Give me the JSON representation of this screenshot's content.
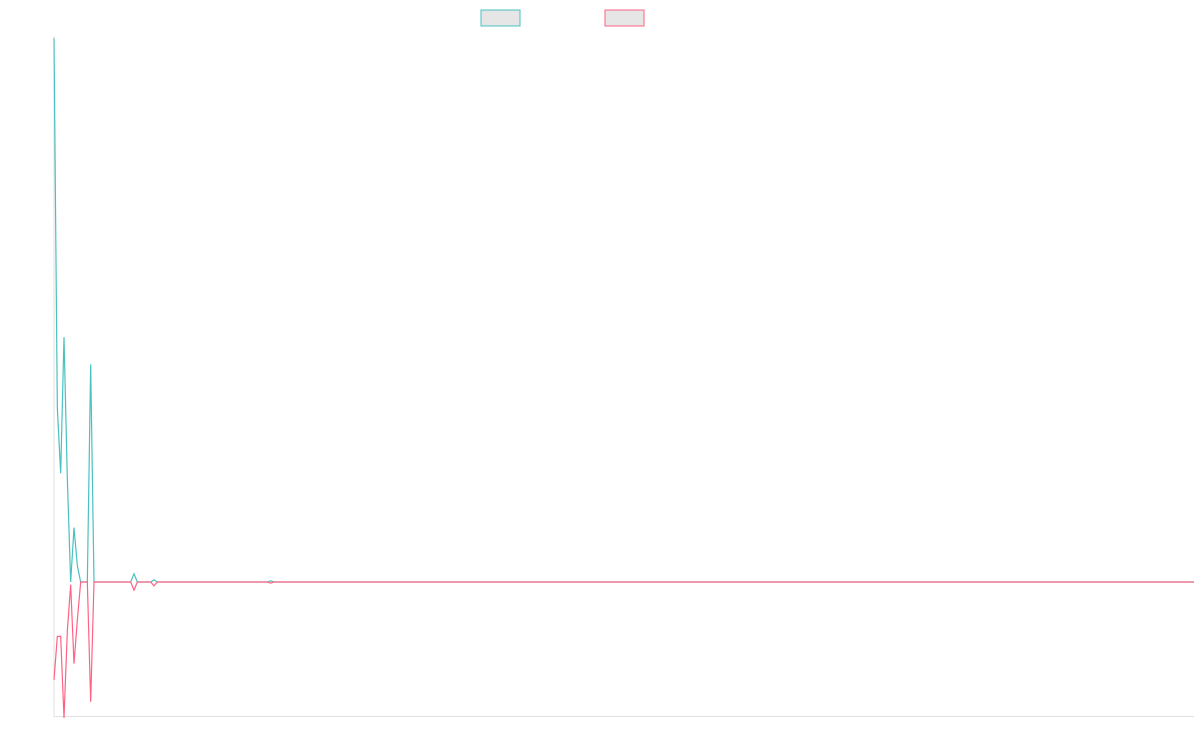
{
  "chart_data": {
    "type": "line",
    "x": [
      0,
      1,
      2,
      3,
      4,
      5,
      6,
      7,
      8,
      9,
      10,
      11,
      12,
      23,
      24,
      25,
      29,
      30,
      31,
      64,
      65,
      66,
      342
    ],
    "xlim": [
      0,
      342
    ],
    "ylim": [
      -0.25,
      1.0
    ],
    "series": [
      {
        "color": "#4bc0c0",
        "values": [
          1.0,
          0.32,
          0.2,
          0.45,
          0.19,
          0,
          0.1,
          0.03,
          0,
          0,
          0,
          0.4,
          0,
          0,
          0.015,
          0,
          0,
          0.004,
          0,
          0,
          0.002,
          0,
          0
        ]
      },
      {
        "color": "#ff6384",
        "values": [
          -0.18,
          -0.1,
          -0.1,
          -0.25,
          -0.09,
          -0.005,
          -0.15,
          -0.07,
          0,
          0,
          0,
          -0.22,
          0,
          0,
          -0.015,
          0,
          0,
          -0.007,
          0,
          0,
          -0.002,
          0,
          0
        ]
      }
    ]
  }
}
